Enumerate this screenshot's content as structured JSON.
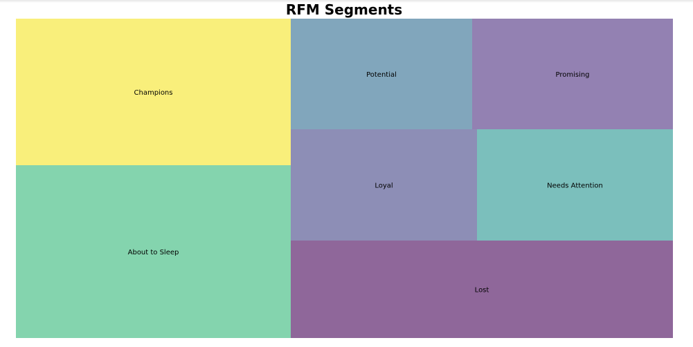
{
  "chart_data": {
    "type": "treemap",
    "title": "RFM Segments",
    "segments": [
      {
        "label": "About to Sleep",
        "color": "#84d4ae"
      },
      {
        "label": "Champions",
        "color": "#f9ef7b"
      },
      {
        "label": "Lost",
        "color": "#8f679a"
      },
      {
        "label": "Loyal",
        "color": "#8d8eb6"
      },
      {
        "label": "Needs Attention",
        "color": "#7bbfbc"
      },
      {
        "label": "Potential",
        "color": "#81a6bc"
      },
      {
        "label": "Promising",
        "color": "#9381b2"
      }
    ]
  }
}
